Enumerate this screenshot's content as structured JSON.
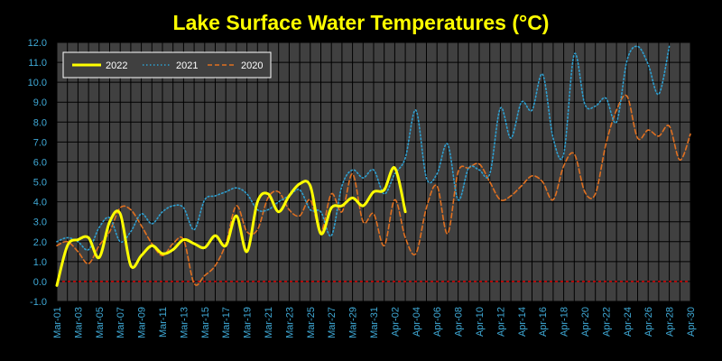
{
  "chart_data": {
    "type": "line",
    "title": "Lake Surface Water Temperatures (°C)",
    "xlabel": "",
    "ylabel": "",
    "ylim": [
      -1.0,
      12.0
    ],
    "yticks": [
      "-1.0",
      "0.0",
      "1.0",
      "2.0",
      "3.0",
      "4.0",
      "5.0",
      "6.0",
      "7.0",
      "8.0",
      "9.0",
      "10.0",
      "11.0",
      "12.0"
    ],
    "xtick_labels": [
      "Mar-01",
      "Mar-03",
      "Mar-05",
      "Mar-07",
      "Mar-09",
      "Mar-11",
      "Mar-13",
      "Mar-15",
      "Mar-17",
      "Mar-19",
      "Mar-21",
      "Mar-23",
      "Mar-25",
      "Mar-27",
      "Mar-29",
      "Mar-31",
      "Apr-02",
      "Apr-04",
      "Apr-06",
      "Apr-08",
      "Apr-10",
      "Apr-12",
      "Apr-14",
      "Apr-16",
      "Apr-18",
      "Apr-20",
      "Apr-22",
      "Apr-24",
      "Apr-26",
      "Apr-28",
      "Apr-30"
    ],
    "grid": true,
    "legend_position": "top-left",
    "colors": {
      "background": "#404040",
      "grid": "#000000",
      "zero_line": "#d40000",
      "tick_text": "#3fa9d6",
      "title": "#ffff00"
    },
    "series": [
      {
        "name": "2022",
        "color": "#ffff00",
        "style": "solid",
        "values": [
          -0.2,
          1.8,
          2.1,
          2.2,
          1.2,
          3.0,
          3.4,
          0.8,
          1.3,
          1.8,
          1.4,
          1.6,
          2.1,
          1.9,
          1.7,
          2.3,
          1.8,
          3.3,
          1.5,
          4.0,
          4.4,
          3.5,
          4.3,
          4.9,
          4.8,
          2.4,
          3.7,
          3.8,
          4.2,
          3.8,
          4.5,
          4.6,
          5.7,
          3.5
        ]
      },
      {
        "name": "2021",
        "color": "#2e9fd0",
        "style": "dotted",
        "values": [
          2.0,
          2.2,
          2.0,
          1.6,
          2.7,
          3.2,
          2.0,
          2.5,
          3.4,
          2.9,
          3.5,
          3.8,
          3.7,
          2.6,
          4.1,
          4.3,
          4.5,
          4.7,
          4.4,
          3.6,
          3.6,
          4.0,
          4.3,
          4.6,
          3.6,
          3.5,
          2.3,
          4.8,
          5.6,
          5.2,
          5.6,
          4.4,
          5.4,
          6.2,
          8.6,
          5.2,
          5.4,
          6.9,
          4.1,
          5.7,
          5.6,
          5.4,
          8.7,
          7.2,
          9.0,
          8.6,
          10.4,
          7.2,
          6.4,
          11.4,
          8.9,
          8.8,
          9.2,
          8.0,
          11.1,
          11.8,
          10.9,
          9.4,
          11.8
        ]
      },
      {
        "name": "2020",
        "color": "#e07020",
        "style": "dashed",
        "values": [
          1.8,
          2.0,
          1.5,
          0.9,
          1.8,
          2.5,
          3.7,
          3.6,
          2.8,
          1.9,
          1.3,
          1.9,
          2.1,
          -0.1,
          0.3,
          0.8,
          1.9,
          3.8,
          2.5,
          2.6,
          4.2,
          4.5,
          3.6,
          3.3,
          4.1,
          2.5,
          4.4,
          3.5,
          5.4,
          3.0,
          3.4,
          1.8,
          4.1,
          2.2,
          1.4,
          3.7,
          4.8,
          2.4,
          5.5,
          5.7,
          5.9,
          5.0,
          4.1,
          4.3,
          4.8,
          5.3,
          5.0,
          4.1,
          5.8,
          6.4,
          4.5,
          4.4,
          6.9,
          8.6,
          9.3,
          7.2,
          7.6,
          7.3,
          7.8,
          6.1,
          7.4
        ]
      }
    ]
  }
}
